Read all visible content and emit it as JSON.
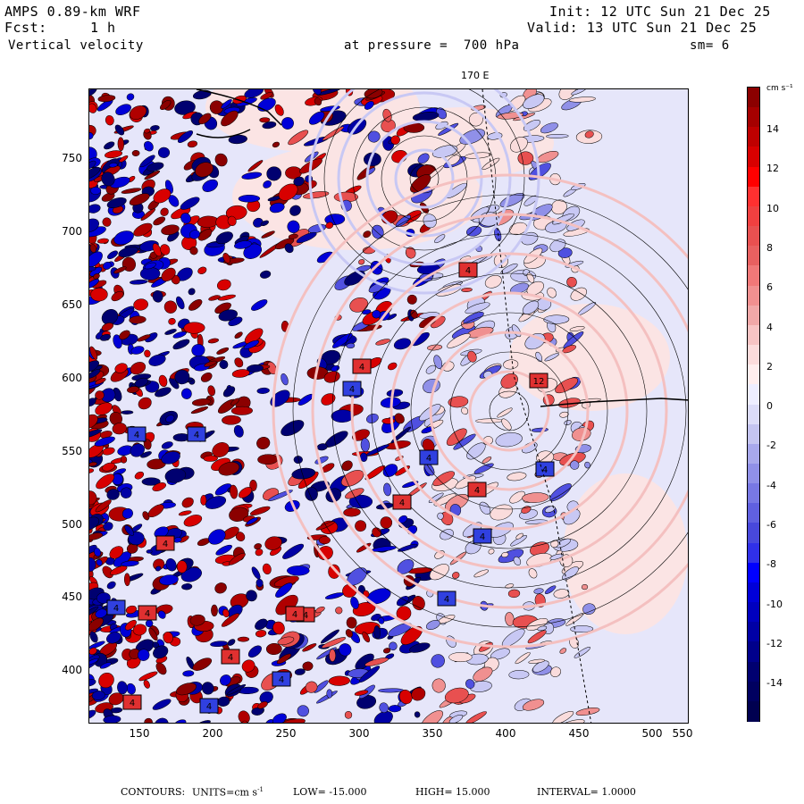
{
  "header": {
    "model": "AMPS 0.89-km WRF",
    "fcst_label": "Fcst:",
    "fcst_value": "1 h",
    "field": "Vertical velocity",
    "init": "Init: 12 UTC Sun 21 Dec 25",
    "valid": "Valid: 13 UTC Sun 21 Dec 25",
    "pressure": "at pressure =  700 hPa",
    "smoothing": "sm= 6"
  },
  "map": {
    "meridian_label": "170 E",
    "x_ticks": [
      "150",
      "200",
      "250",
      "300",
      "350",
      "400",
      "450",
      "500",
      "550"
    ],
    "y_ticks": [
      "750",
      "700",
      "650",
      "600",
      "550",
      "500",
      "450",
      "400"
    ],
    "box_labels": [
      "4",
      "4",
      "4",
      "4",
      "4",
      "4",
      "4",
      "4",
      "4",
      "4",
      "4",
      "4",
      "4",
      "4",
      "4",
      "4",
      "12",
      "4",
      "4",
      "4",
      "4"
    ]
  },
  "colorbar": {
    "units": "cm s⁻¹",
    "labels": [
      "14",
      "12",
      "10",
      "8",
      "6",
      "4",
      "2",
      "0",
      "-2",
      "-4",
      "-6",
      "-8",
      "-10",
      "-12",
      "-14"
    ],
    "colors_top_to_bottom": [
      "#8b0000",
      "#a50000",
      "#bf0000",
      "#d80000",
      "#ff0000",
      "#ff3030",
      "#f04040",
      "#e85050",
      "#e86060",
      "#f07878",
      "#f09090",
      "#f0a8a8",
      "#f7c4c4",
      "#fcdcdc",
      "#ffeeee",
      "#eeeeff",
      "#dcdcf8",
      "#c4c4f0",
      "#a8a8ec",
      "#9090e8",
      "#7878e4",
      "#6060e0",
      "#4848dc",
      "#3030e8",
      "#0000ff",
      "#0000d8",
      "#0000bf",
      "#0000a5",
      "#00008b",
      "#000070",
      "#000060",
      "#000050"
    ]
  },
  "footer": {
    "contours": "CONTOURS:",
    "units_label": "UNITS=cm s",
    "units_sup": "-1",
    "low": "LOW= -15.000",
    "high": "HIGH= 15.000",
    "interval": "INTERVAL= 1.0000"
  },
  "colors": {
    "red": "#cc0000",
    "blue": "#0000cc",
    "light_blue": "#e4e4f8",
    "light_red": "#fadcdc"
  }
}
